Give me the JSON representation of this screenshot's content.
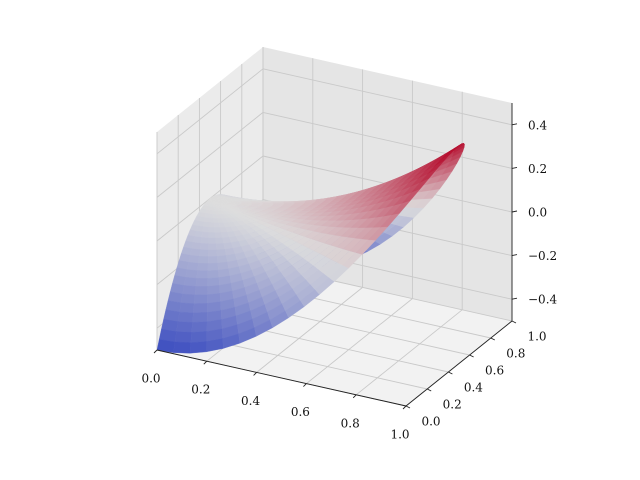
{
  "chart_data": {
    "type": "surface",
    "title": "",
    "xlabel": "",
    "ylabel": "",
    "zlabel": "",
    "xlim": [
      0.0,
      1.0
    ],
    "ylim": [
      0.0,
      1.0
    ],
    "zlim": [
      -0.5,
      0.5
    ],
    "x_ticks": [
      0.0,
      0.2,
      0.4,
      0.6,
      0.8,
      1.0
    ],
    "x_tick_labels": [
      "0.0",
      "0.2",
      "0.4",
      "0.6",
      "0.8",
      "1.0"
    ],
    "y_ticks": [
      0.0,
      0.2,
      0.4,
      0.6,
      0.8,
      1.0
    ],
    "y_tick_labels": [
      "0.0",
      "0.2",
      "0.4",
      "0.6",
      "0.8",
      "1.0"
    ],
    "z_ticks": [
      -0.4,
      -0.2,
      0.0,
      0.2,
      0.4
    ],
    "z_tick_labels": [
      "−0.4",
      "−0.2",
      "0.0",
      "0.2",
      "0.4"
    ],
    "surface": {
      "domain": "polar disk: r in [0, 1], theta in [-pi/2, pi/2], x = r cos(theta), y = 0.5 + 0.5 r sin(theta)",
      "r_steps": 24,
      "theta_steps": 48,
      "z_samples": {
        "formula": "z = 0.5 r^2 cos(2 theta)",
        "min": -0.5,
        "max": 0.5
      }
    },
    "colormap": {
      "name": "coolwarm",
      "low": "#3b4cc0",
      "mid": "#dddddd",
      "high": "#b40426"
    },
    "grid": true,
    "legend": "none"
  }
}
